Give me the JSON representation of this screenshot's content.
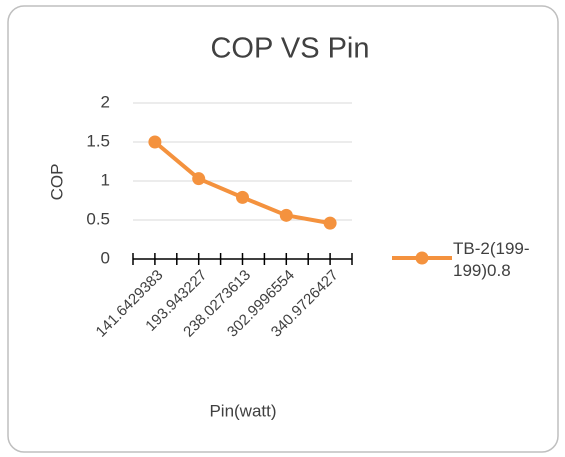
{
  "chart_data": {
    "type": "line",
    "title": "COP VS Pin",
    "x_label": "Pin(watt)",
    "y_label": "COP",
    "categories": [
      "141.6429383",
      "193.943227",
      "238.0273613",
      "302.9996554",
      "340.9726427"
    ],
    "series": [
      {
        "name": "TB-2(199-199)0.8",
        "color": "#f4923e",
        "values": [
          1.5,
          1.03,
          0.79,
          0.56,
          0.46
        ]
      }
    ],
    "ylim": [
      0,
      2
    ],
    "yticks": [
      0,
      0.5,
      1,
      1.5,
      2
    ],
    "grid": true,
    "legend": "right"
  }
}
